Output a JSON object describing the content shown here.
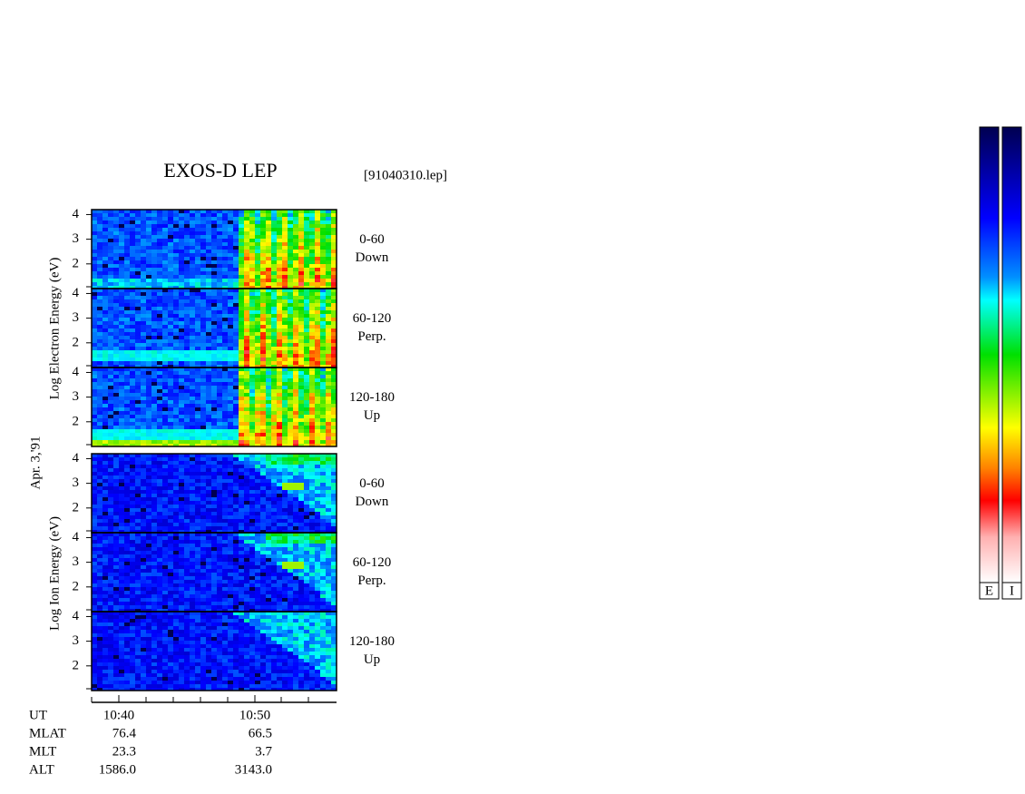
{
  "title": "EXOS-D LEP",
  "file": "[91040310.lep]",
  "date": "Apr. 3,'91",
  "groups": [
    {
      "ylabel": "Log Electron Energy (eV)",
      "panels": [
        {
          "angle": "0-60",
          "direction": "Down"
        },
        {
          "angle": "60-120",
          "direction": "Perp."
        },
        {
          "angle": "120-180",
          "direction": "Up"
        }
      ]
    },
    {
      "ylabel": "Log Ion Energy (eV)",
      "panels": [
        {
          "angle": "0-60",
          "direction": "Down"
        },
        {
          "angle": "60-120",
          "direction": "Perp."
        },
        {
          "angle": "120-180",
          "direction": "Up"
        }
      ]
    }
  ],
  "ylim": [
    1,
    4.2
  ],
  "yticks": [
    2,
    3,
    4
  ],
  "xlim": [
    638,
    656
  ],
  "xticks": [
    {
      "value": 640,
      "label": "10:40"
    },
    {
      "value": 650,
      "label": "10:50"
    }
  ],
  "ephemeris": {
    "headers": [
      "UT",
      "MLAT",
      "MLT",
      "ALT"
    ],
    "rows": [
      [
        "76.4",
        "66.5"
      ],
      [
        "23.3",
        "3.7"
      ],
      [
        "1586.0",
        "3143.0"
      ]
    ]
  },
  "colorbar_labels": [
    "E",
    "I"
  ]
}
